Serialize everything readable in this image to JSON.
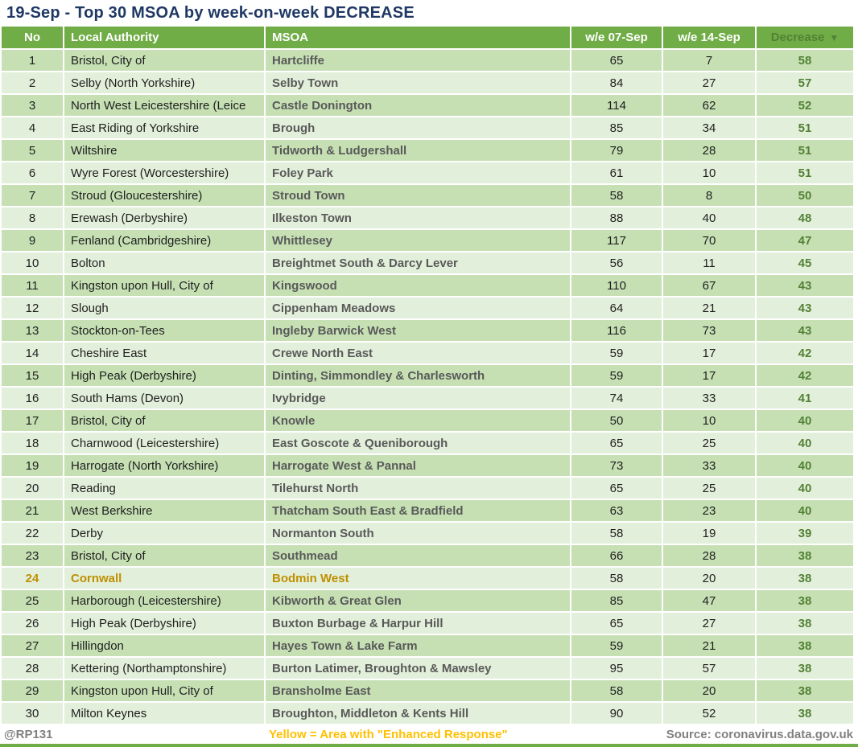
{
  "chart_data": {
    "type": "table",
    "title": "19-Sep - Top 30 MSOA by week-on-week DECREASE",
    "columns": [
      {
        "label": "No"
      },
      {
        "label": "Local Authority"
      },
      {
        "label": "MSOA"
      },
      {
        "label": "w/e 07-Sep"
      },
      {
        "label": "w/e 14-Sep"
      },
      {
        "label": "Decrease",
        "sort_icon": "▼",
        "sort": "desc"
      }
    ],
    "rows": [
      {
        "no": 1,
        "local_authority": "Bristol, City of",
        "msoa": "Hartcliffe",
        "we_07_sep": 65,
        "we_14_sep": 7,
        "decrease": 58
      },
      {
        "no": 2,
        "local_authority": "Selby (North Yorkshire)",
        "msoa": "Selby Town",
        "we_07_sep": 84,
        "we_14_sep": 27,
        "decrease": 57
      },
      {
        "no": 3,
        "local_authority": "North West Leicestershire (Leice",
        "msoa": "Castle Donington",
        "we_07_sep": 114,
        "we_14_sep": 62,
        "decrease": 52
      },
      {
        "no": 4,
        "local_authority": "East Riding of Yorkshire",
        "msoa": "Brough",
        "we_07_sep": 85,
        "we_14_sep": 34,
        "decrease": 51
      },
      {
        "no": 5,
        "local_authority": "Wiltshire",
        "msoa": "Tidworth & Ludgershall",
        "we_07_sep": 79,
        "we_14_sep": 28,
        "decrease": 51
      },
      {
        "no": 6,
        "local_authority": "Wyre Forest (Worcestershire)",
        "msoa": "Foley Park",
        "we_07_sep": 61,
        "we_14_sep": 10,
        "decrease": 51
      },
      {
        "no": 7,
        "local_authority": "Stroud (Gloucestershire)",
        "msoa": "Stroud Town",
        "we_07_sep": 58,
        "we_14_sep": 8,
        "decrease": 50
      },
      {
        "no": 8,
        "local_authority": "Erewash (Derbyshire)",
        "msoa": "Ilkeston Town",
        "we_07_sep": 88,
        "we_14_sep": 40,
        "decrease": 48
      },
      {
        "no": 9,
        "local_authority": "Fenland (Cambridgeshire)",
        "msoa": "Whittlesey",
        "we_07_sep": 117,
        "we_14_sep": 70,
        "decrease": 47
      },
      {
        "no": 10,
        "local_authority": "Bolton",
        "msoa": "Breightmet South & Darcy Lever",
        "we_07_sep": 56,
        "we_14_sep": 11,
        "decrease": 45
      },
      {
        "no": 11,
        "local_authority": "Kingston upon Hull, City of",
        "msoa": "Kingswood",
        "we_07_sep": 110,
        "we_14_sep": 67,
        "decrease": 43
      },
      {
        "no": 12,
        "local_authority": "Slough",
        "msoa": "Cippenham Meadows",
        "we_07_sep": 64,
        "we_14_sep": 21,
        "decrease": 43
      },
      {
        "no": 13,
        "local_authority": "Stockton-on-Tees",
        "msoa": "Ingleby Barwick West",
        "we_07_sep": 116,
        "we_14_sep": 73,
        "decrease": 43
      },
      {
        "no": 14,
        "local_authority": "Cheshire East",
        "msoa": "Crewe North East",
        "we_07_sep": 59,
        "we_14_sep": 17,
        "decrease": 42
      },
      {
        "no": 15,
        "local_authority": "High Peak (Derbyshire)",
        "msoa": "Dinting, Simmondley & Charlesworth",
        "we_07_sep": 59,
        "we_14_sep": 17,
        "decrease": 42
      },
      {
        "no": 16,
        "local_authority": "South Hams (Devon)",
        "msoa": "Ivybridge",
        "we_07_sep": 74,
        "we_14_sep": 33,
        "decrease": 41
      },
      {
        "no": 17,
        "local_authority": "Bristol, City of",
        "msoa": "Knowle",
        "we_07_sep": 50,
        "we_14_sep": 10,
        "decrease": 40
      },
      {
        "no": 18,
        "local_authority": "Charnwood (Leicestershire)",
        "msoa": "East Goscote & Queniborough",
        "we_07_sep": 65,
        "we_14_sep": 25,
        "decrease": 40
      },
      {
        "no": 19,
        "local_authority": "Harrogate (North Yorkshire)",
        "msoa": "Harrogate West & Pannal",
        "we_07_sep": 73,
        "we_14_sep": 33,
        "decrease": 40
      },
      {
        "no": 20,
        "local_authority": "Reading",
        "msoa": "Tilehurst North",
        "we_07_sep": 65,
        "we_14_sep": 25,
        "decrease": 40
      },
      {
        "no": 21,
        "local_authority": "West Berkshire",
        "msoa": "Thatcham South East & Bradfield",
        "we_07_sep": 63,
        "we_14_sep": 23,
        "decrease": 40
      },
      {
        "no": 22,
        "local_authority": "Derby",
        "msoa": "Normanton South",
        "we_07_sep": 58,
        "we_14_sep": 19,
        "decrease": 39
      },
      {
        "no": 23,
        "local_authority": "Bristol, City of",
        "msoa": "Southmead",
        "we_07_sep": 66,
        "we_14_sep": 28,
        "decrease": 38
      },
      {
        "no": 24,
        "local_authority": "Cornwall",
        "msoa": "Bodmin West",
        "we_07_sep": 58,
        "we_14_sep": 20,
        "decrease": 38,
        "highlighted": true
      },
      {
        "no": 25,
        "local_authority": "Harborough (Leicestershire)",
        "msoa": "Kibworth & Great Glen",
        "we_07_sep": 85,
        "we_14_sep": 47,
        "decrease": 38
      },
      {
        "no": 26,
        "local_authority": "High Peak (Derbyshire)",
        "msoa": "Buxton Burbage & Harpur Hill",
        "we_07_sep": 65,
        "we_14_sep": 27,
        "decrease": 38
      },
      {
        "no": 27,
        "local_authority": "Hillingdon",
        "msoa": "Hayes Town & Lake Farm",
        "we_07_sep": 59,
        "we_14_sep": 21,
        "decrease": 38
      },
      {
        "no": 28,
        "local_authority": "Kettering (Northamptonshire)",
        "msoa": "Burton Latimer, Broughton & Mawsley",
        "we_07_sep": 95,
        "we_14_sep": 57,
        "decrease": 38
      },
      {
        "no": 29,
        "local_authority": "Kingston upon Hull, City of",
        "msoa": "Bransholme East",
        "we_07_sep": 58,
        "we_14_sep": 20,
        "decrease": 38
      },
      {
        "no": 30,
        "local_authority": "Milton Keynes",
        "msoa": "Broughton, Middleton & Kents Hill",
        "we_07_sep": 90,
        "we_14_sep": 52,
        "decrease": 38
      }
    ]
  },
  "footer": {
    "handle": "@RP131",
    "legend": "Yellow = Area with \"Enhanced Response\"",
    "source": "Source: coronavirus.data.gov.uk"
  },
  "colors": {
    "header_green": "#70AD47",
    "row_dark": "#C6E0B4",
    "row_light": "#E2EFDA",
    "title_navy": "#1F3864",
    "decrease_text": "#538135",
    "highlight_gold": "#BF8F00",
    "legend_yellow": "#FFC000",
    "footer_gray": "#808080",
    "msoa_text": "#595959",
    "body_text": "#1F1F1F"
  }
}
